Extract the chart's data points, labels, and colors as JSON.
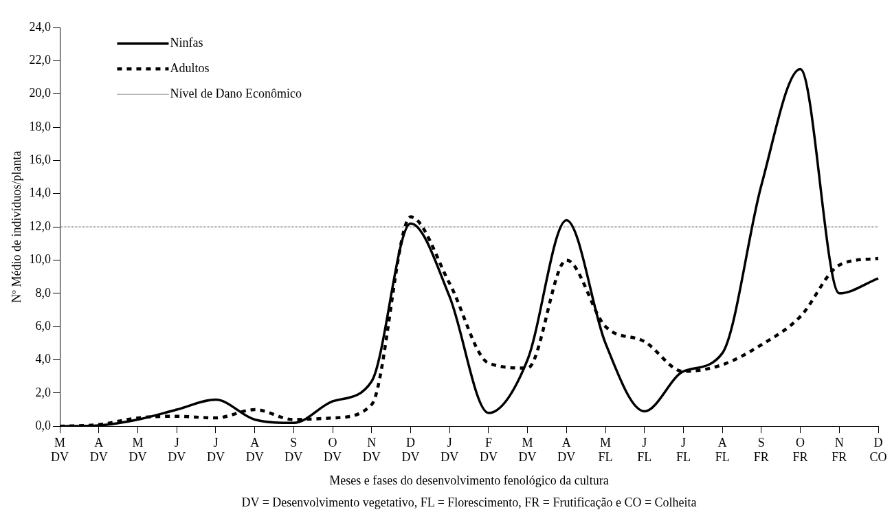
{
  "chart_data": {
    "type": "line",
    "xlabel": "Meses e fases do desenvolvimento fenológico da cultura",
    "ylabel": "Nº Médio de indivíduos/planta",
    "categories": [
      "M\nDV",
      "A\nDV",
      "M\nDV",
      "J\nDV",
      "J\nDV",
      "A\nDV",
      "S\nDV",
      "O\nDV",
      "N\nDV",
      "D\nDV",
      "J\nDV",
      "F\nDV",
      "M\nDV",
      "A\nDV",
      "M\nFL",
      "J\nFL",
      "J\nFL",
      "A\nFL",
      "S\nFR",
      "O\nFR",
      "N\nFR",
      "D\nCO"
    ],
    "series": [
      {
        "name": "Ninfas",
        "color": "#000000",
        "line_style": "solid",
        "values": [
          0,
          0.05,
          0.4,
          1.0,
          1.6,
          0.4,
          0.2,
          1.5,
          2.7,
          12.2,
          7.8,
          0.8,
          4.0,
          12.4,
          5.0,
          0.9,
          3.3,
          4.4,
          14.5,
          21.5,
          8.0,
          8.9
        ]
      },
      {
        "name": "Adultos",
        "color": "#000000",
        "line_style": "dashed",
        "values": [
          0,
          0.1,
          0.5,
          0.6,
          0.5,
          1.0,
          0.4,
          0.5,
          1.3,
          12.6,
          8.6,
          3.8,
          3.5,
          10.0,
          6.0,
          5.1,
          3.3,
          3.7,
          4.9,
          6.6,
          9.7,
          10.1
        ]
      }
    ],
    "ylim": [
      0,
      24
    ],
    "yticks": [
      {
        "value": 0,
        "label": "0,0"
      },
      {
        "value": 2,
        "label": "2,0"
      },
      {
        "value": 4,
        "label": "4,0"
      },
      {
        "value": 6,
        "label": "6,0"
      },
      {
        "value": 8,
        "label": "8,0"
      },
      {
        "value": 10,
        "label": "10,0"
      },
      {
        "value": 12,
        "label": "12,0"
      },
      {
        "value": 14,
        "label": "14,0"
      },
      {
        "value": 16,
        "label": "16,0"
      },
      {
        "value": 18,
        "label": "18,0"
      },
      {
        "value": 20,
        "label": "20,0"
      },
      {
        "value": 22,
        "label": "22,0"
      },
      {
        "value": 24,
        "label": "24,0"
      }
    ],
    "ref_lines": [
      {
        "axis": "y",
        "value": 12,
        "label": "Nível de Dano Econômico",
        "color": "#000000",
        "line_style": "dotted"
      }
    ],
    "annotations": [
      "DV = Desenvolvimento vegetativo, FL = Florescimento, FR = Frutificação e CO = Colheita"
    ],
    "grid": false,
    "legend": "top left",
    "marker": "none"
  }
}
